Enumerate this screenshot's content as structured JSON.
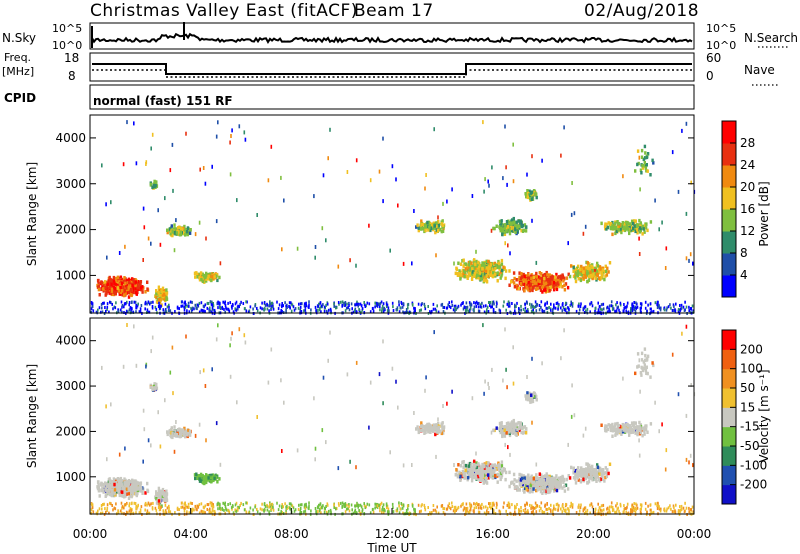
{
  "header": {
    "title": "Christmas Valley East (fitACF)",
    "beam": "Beam 17",
    "date": "02/Aug/2018"
  },
  "panels": {
    "nsky": {
      "label": "N.Sky",
      "tick_top": "10^5",
      "tick_bottom": "10^0"
    },
    "nsearch": {
      "label": "N.Search",
      "tick_top": "10^5",
      "tick_bottom": "10^0"
    },
    "freq": {
      "label_line1": "Freq.",
      "label_line2": "[MHz]",
      "tick_top": "18",
      "tick_bottom": "8"
    },
    "nave": {
      "label": "Nave",
      "tick_top": "60",
      "tick_bottom": "0"
    },
    "cpid": {
      "label": "CPID",
      "value": "normal (fast) 151 RF"
    }
  },
  "chart_data": [
    {
      "type": "heatmap",
      "title": "",
      "ylabel": "Slant Range [km]",
      "xlabel": "",
      "ylim": [
        180,
        4500
      ],
      "yticks": [
        "1000",
        "2000",
        "3000",
        "4000"
      ],
      "colorbar": {
        "label": "Power [dB]",
        "ticks": [
          "4",
          "8",
          "12",
          "16",
          "20",
          "24",
          "28"
        ],
        "colors": [
          "#0000ff",
          "#1f4fa8",
          "#2f8c6a",
          "#7fbf3f",
          "#f0c020",
          "#f08a10",
          "#e83010",
          "#ff0000"
        ]
      }
    },
    {
      "type": "heatmap",
      "title": "",
      "ylabel": "Slant Range [km]",
      "xlabel": "Time UT",
      "ylim": [
        180,
        4500
      ],
      "yticks": [
        "1000",
        "2000",
        "3000",
        "4000"
      ],
      "xticks": [
        "00:00",
        "04:00",
        "08:00",
        "12:00",
        "16:00",
        "20:00",
        "00:00"
      ],
      "colorbar": {
        "label": "Velocity [m s⁻¹]",
        "ticks": [
          "200",
          "100",
          "50",
          "15",
          "-15",
          "-50",
          "-100",
          "-200"
        ],
        "colors": [
          "#1010c8",
          "#2050b0",
          "#2f8c5a",
          "#70c040",
          "#c8c8c0",
          "#f0c030",
          "#f09020",
          "#f06010",
          "#ff0000"
        ]
      }
    }
  ]
}
